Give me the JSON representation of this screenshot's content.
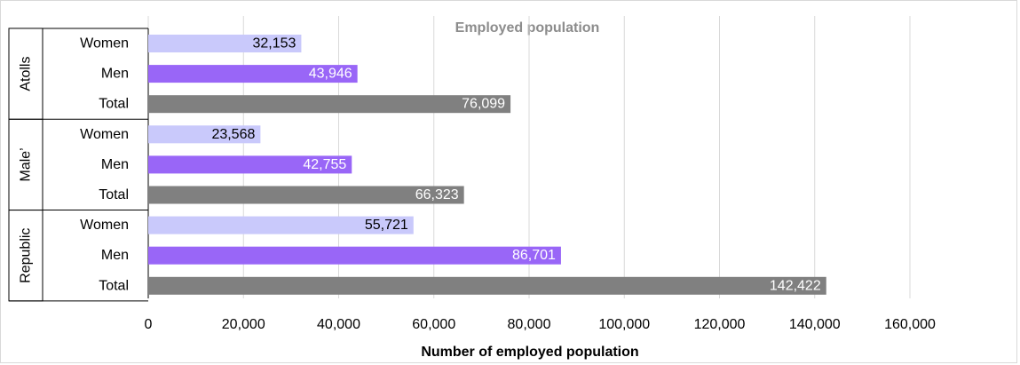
{
  "chart_data": {
    "type": "bar",
    "orientation": "horizontal",
    "title": "Employed population",
    "xlabel": "Number of employed population",
    "ylabel": "",
    "xlim": [
      0,
      160000
    ],
    "x_ticks": [
      "0",
      "20,000",
      "40,000",
      "60,000",
      "80,000",
      "100,000",
      "120,000",
      "140,000",
      "160,000"
    ],
    "grid": true,
    "legend": "none",
    "groups": [
      {
        "name": "Atolls",
        "bars": [
          {
            "category": "Women",
            "value": 32153,
            "label": "32,153"
          },
          {
            "category": "Men",
            "value": 43946,
            "label": "43,946"
          },
          {
            "category": "Total",
            "value": 76099,
            "label": "76,099"
          }
        ]
      },
      {
        "name": "Male’",
        "bars": [
          {
            "category": "Women",
            "value": 23568,
            "label": "23,568"
          },
          {
            "category": "Men",
            "value": 42755,
            "label": "42,755"
          },
          {
            "category": "Total",
            "value": 66323,
            "label": "66,323"
          }
        ]
      },
      {
        "name": "Republic",
        "bars": [
          {
            "category": "Women",
            "value": 55721,
            "label": "55,721"
          },
          {
            "category": "Men",
            "value": 86701,
            "label": "86,701"
          },
          {
            "category": "Total",
            "value": 142422,
            "label": "142,422"
          }
        ]
      }
    ],
    "colors": {
      "Women": "#c9c9fb",
      "Men": "#9966f7",
      "Total": "#808080",
      "label_on_light": "#000000",
      "label_on_dark": "#ffffff"
    }
  }
}
